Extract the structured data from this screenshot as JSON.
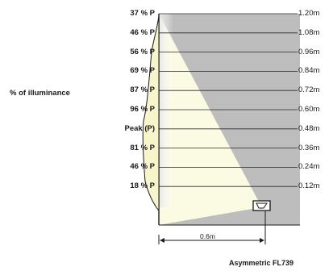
{
  "side_label": "% of illuminance",
  "rows": [
    {
      "percent": "37 % P",
      "distance": "1.20m"
    },
    {
      "percent": "46 % P",
      "distance": "1.08m"
    },
    {
      "percent": "56 % P",
      "distance": "0.96m"
    },
    {
      "percent": "69 % P",
      "distance": "0.84m"
    },
    {
      "percent": "87 % P",
      "distance": "0.72m"
    },
    {
      "percent": "96 % P",
      "distance": "0.60m"
    },
    {
      "percent": "Peak (P)",
      "distance": "0.48m"
    },
    {
      "percent": "81 % P",
      "distance": "0.36m"
    },
    {
      "percent": "46 % P",
      "distance": "0.24m"
    },
    {
      "percent": "18 % P",
      "distance": "0.12m"
    }
  ],
  "span_label": "0.6m",
  "caption": "Asymmetric FL739",
  "colors": {
    "shadow": "#bdbdbd",
    "light": "#fbfbe4",
    "curve_fill": "#f7f5cc",
    "line": "#1a1a1a"
  }
}
